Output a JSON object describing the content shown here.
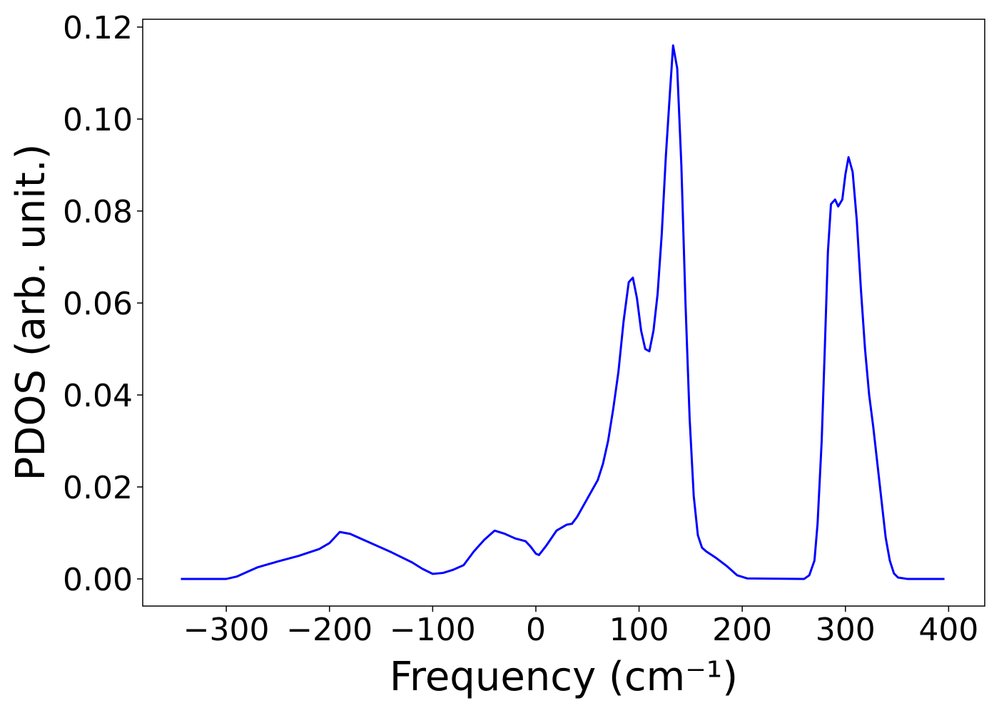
{
  "chart_data": {
    "type": "line",
    "xlabel": "Frequency (cm⁻¹)",
    "ylabel": "PDOS (arb. unit.)",
    "series": [
      {
        "color": "#0000ff",
        "x": [
          -344,
          -300,
          -290,
          -280,
          -270,
          -250,
          -230,
          -210,
          -200,
          -190,
          -180,
          -160,
          -140,
          -120,
          -110,
          -100,
          -90,
          -80,
          -70,
          -60,
          -50,
          -40,
          -30,
          -20,
          -10,
          -5,
          0,
          3,
          10,
          20,
          30,
          35,
          40,
          50,
          60,
          65,
          70,
          75,
          80,
          85,
          90,
          94,
          98,
          102,
          106,
          110,
          114,
          118,
          122,
          126,
          130,
          133,
          137,
          141,
          145,
          149,
          153,
          157,
          161,
          165,
          175,
          185,
          195,
          205,
          260,
          265,
          270,
          273,
          277,
          280,
          283,
          286,
          290,
          293,
          297,
          300,
          303,
          307,
          311,
          315,
          319,
          323,
          327,
          331,
          335,
          339,
          343,
          347,
          351,
          360,
          396
        ],
        "values": [
          0,
          0,
          0.0005,
          0.0015,
          0.0025,
          0.0038,
          0.005,
          0.0065,
          0.0078,
          0.0102,
          0.0098,
          0.0078,
          0.0058,
          0.0036,
          0.0022,
          0.0011,
          0.0013,
          0.002,
          0.003,
          0.006,
          0.0085,
          0.0105,
          0.0098,
          0.0088,
          0.0082,
          0.007,
          0.0055,
          0.0052,
          0.0072,
          0.0105,
          0.0118,
          0.012,
          0.0135,
          0.0175,
          0.0215,
          0.025,
          0.03,
          0.037,
          0.045,
          0.056,
          0.0645,
          0.0655,
          0.061,
          0.054,
          0.05,
          0.0495,
          0.054,
          0.062,
          0.075,
          0.092,
          0.106,
          0.116,
          0.111,
          0.09,
          0.06,
          0.035,
          0.018,
          0.0095,
          0.0068,
          0.006,
          0.0045,
          0.0028,
          0.0008,
          0.0001,
          0,
          0.0008,
          0.004,
          0.012,
          0.03,
          0.05,
          0.071,
          0.0815,
          0.0825,
          0.081,
          0.0825,
          0.088,
          0.0917,
          0.0885,
          0.078,
          0.063,
          0.05,
          0.04,
          0.033,
          0.025,
          0.017,
          0.009,
          0.004,
          0.0012,
          0.0003,
          0,
          0
        ]
      }
    ],
    "xlim": [
      -381,
      435
    ],
    "xticks": [
      {
        "value": -300,
        "label": "−300"
      },
      {
        "value": -200,
        "label": "−200"
      },
      {
        "value": -100,
        "label": "−100"
      },
      0,
      100,
      200,
      300,
      400
    ],
    "ylim": [
      -0.0059,
      0.1217
    ],
    "yticks": [
      {
        "value": 0,
        "label": "0.00"
      },
      {
        "value": 0.02,
        "label": "0.02"
      },
      {
        "value": 0.04,
        "label": "0.04"
      },
      {
        "value": 0.06,
        "label": "0.06"
      },
      {
        "value": 0.08,
        "label": "0.08"
      },
      {
        "value": 0.1,
        "label": "0.10"
      },
      {
        "value": 0.12,
        "label": "0.12"
      }
    ]
  }
}
